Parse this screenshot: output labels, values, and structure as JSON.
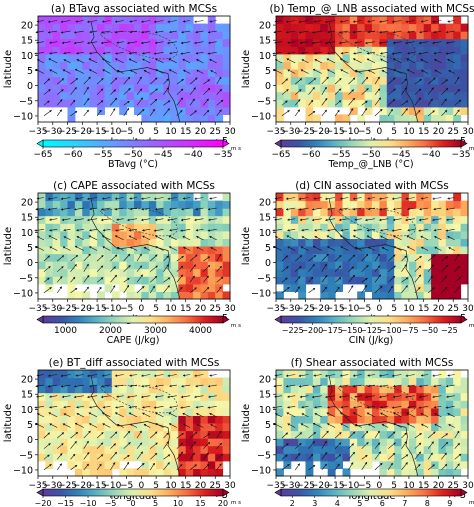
{
  "figure": {
    "panels": [
      {
        "title": "(a) BTavg associated with MCSs",
        "cbar_label": "BTavg (°C)",
        "cbar_ticks": [
          "−65",
          "−60",
          "−55",
          "−50",
          "−45",
          "−40",
          "−35"
        ],
        "cmap": "cool",
        "pattern": "btavg"
      },
      {
        "title": "(b) Temp_@_LNB associated with MCSs",
        "cbar_label": "Temp_@_LNB (°C)",
        "cbar_ticks": [
          "−65",
          "−60",
          "−55",
          "−50",
          "−45",
          "−40",
          "−35"
        ],
        "cmap": "spectral",
        "pattern": "lnb"
      },
      {
        "title": "(c) CAPE associated with MCSs",
        "cbar_label": "CAPE (J/kg)",
        "cbar_ticks": [
          "1000",
          "2000",
          "3000",
          "4000"
        ],
        "cmap": "spectral",
        "pattern": "cape"
      },
      {
        "title": "(d) CIN associated with MCSs",
        "cbar_label": "CIN (J/kg)",
        "cbar_ticks": [
          "−225",
          "−200",
          "−175",
          "−150",
          "−125",
          "−100",
          "−75",
          "−50",
          "−25"
        ],
        "cmap": "spectral",
        "pattern": "cin"
      },
      {
        "title": "(e) BT_diff associated with MCSs",
        "cbar_label": "BT_diff (°C)",
        "cbar_ticks": [
          "−20",
          "−15",
          "−10",
          "−5",
          "0",
          "5",
          "10",
          "15",
          "20"
        ],
        "cmap": "spectral",
        "pattern": "btdiff"
      },
      {
        "title": "(f) Shear associated with MCSs",
        "cbar_label": "Shear (ms⁻¹)",
        "cbar_ticks": [
          "2",
          "3",
          "4",
          "5",
          "6",
          "7",
          "8",
          "9"
        ],
        "cmap": "spectral",
        "pattern": "shear"
      }
    ],
    "xlabel": "longitude",
    "ylabel": "latitude",
    "x_ticks": [
      "−35",
      "−30",
      "−25",
      "−20",
      "−15",
      "−10",
      "−5",
      "0",
      "5",
      "10",
      "15",
      "20",
      "25",
      "30"
    ],
    "y_ticks": [
      "20",
      "15",
      "10",
      "5",
      "0",
      "−5",
      "−10"
    ],
    "quiver_key": "→ 5",
    "quiver_unit": "m s"
  },
  "chart_data": [
    {
      "type": "heatmap",
      "title": "(a) BTavg associated with MCSs",
      "xlabel": "longitude",
      "ylabel": "latitude",
      "xlim": [
        -35,
        30
      ],
      "ylim": [
        -12,
        23
      ],
      "colorbar": {
        "label": "BTavg (°C)",
        "range": [
          -65,
          -35
        ]
      }
    },
    {
      "type": "heatmap",
      "title": "(b) Temp_@_LNB associated with MCSs",
      "xlabel": "longitude",
      "ylabel": "latitude",
      "xlim": [
        -35,
        30
      ],
      "ylim": [
        -12,
        23
      ],
      "colorbar": {
        "label": "Temp_@_LNB (°C)",
        "range": [
          -65,
          -35
        ]
      }
    },
    {
      "type": "heatmap",
      "title": "(c) CAPE associated with MCSs",
      "xlabel": "longitude",
      "ylabel": "latitude",
      "xlim": [
        -35,
        30
      ],
      "ylim": [
        -12,
        23
      ],
      "colorbar": {
        "label": "CAPE (J/kg)",
        "range": [
          500,
          4500
        ]
      }
    },
    {
      "type": "heatmap",
      "title": "(d) CIN associated with MCSs",
      "xlabel": "longitude",
      "ylabel": "latitude",
      "xlim": [
        -35,
        30
      ],
      "ylim": [
        -12,
        23
      ],
      "colorbar": {
        "label": "CIN (J/kg)",
        "range": [
          -240,
          -10
        ]
      }
    },
    {
      "type": "heatmap",
      "title": "(e) BT_diff associated with MCSs",
      "xlabel": "longitude",
      "ylabel": "latitude",
      "xlim": [
        -35,
        30
      ],
      "ylim": [
        -12,
        23
      ],
      "colorbar": {
        "label": "BT_diff (°C)",
        "range": [
          -20,
          20
        ]
      }
    },
    {
      "type": "heatmap",
      "title": "(f) Shear associated with MCSs",
      "xlabel": "longitude",
      "ylabel": "latitude",
      "xlim": [
        -35,
        30
      ],
      "ylim": [
        -12,
        23
      ],
      "colorbar": {
        "label": "Shear (ms⁻¹)",
        "range": [
          1.5,
          9.5
        ]
      }
    }
  ]
}
